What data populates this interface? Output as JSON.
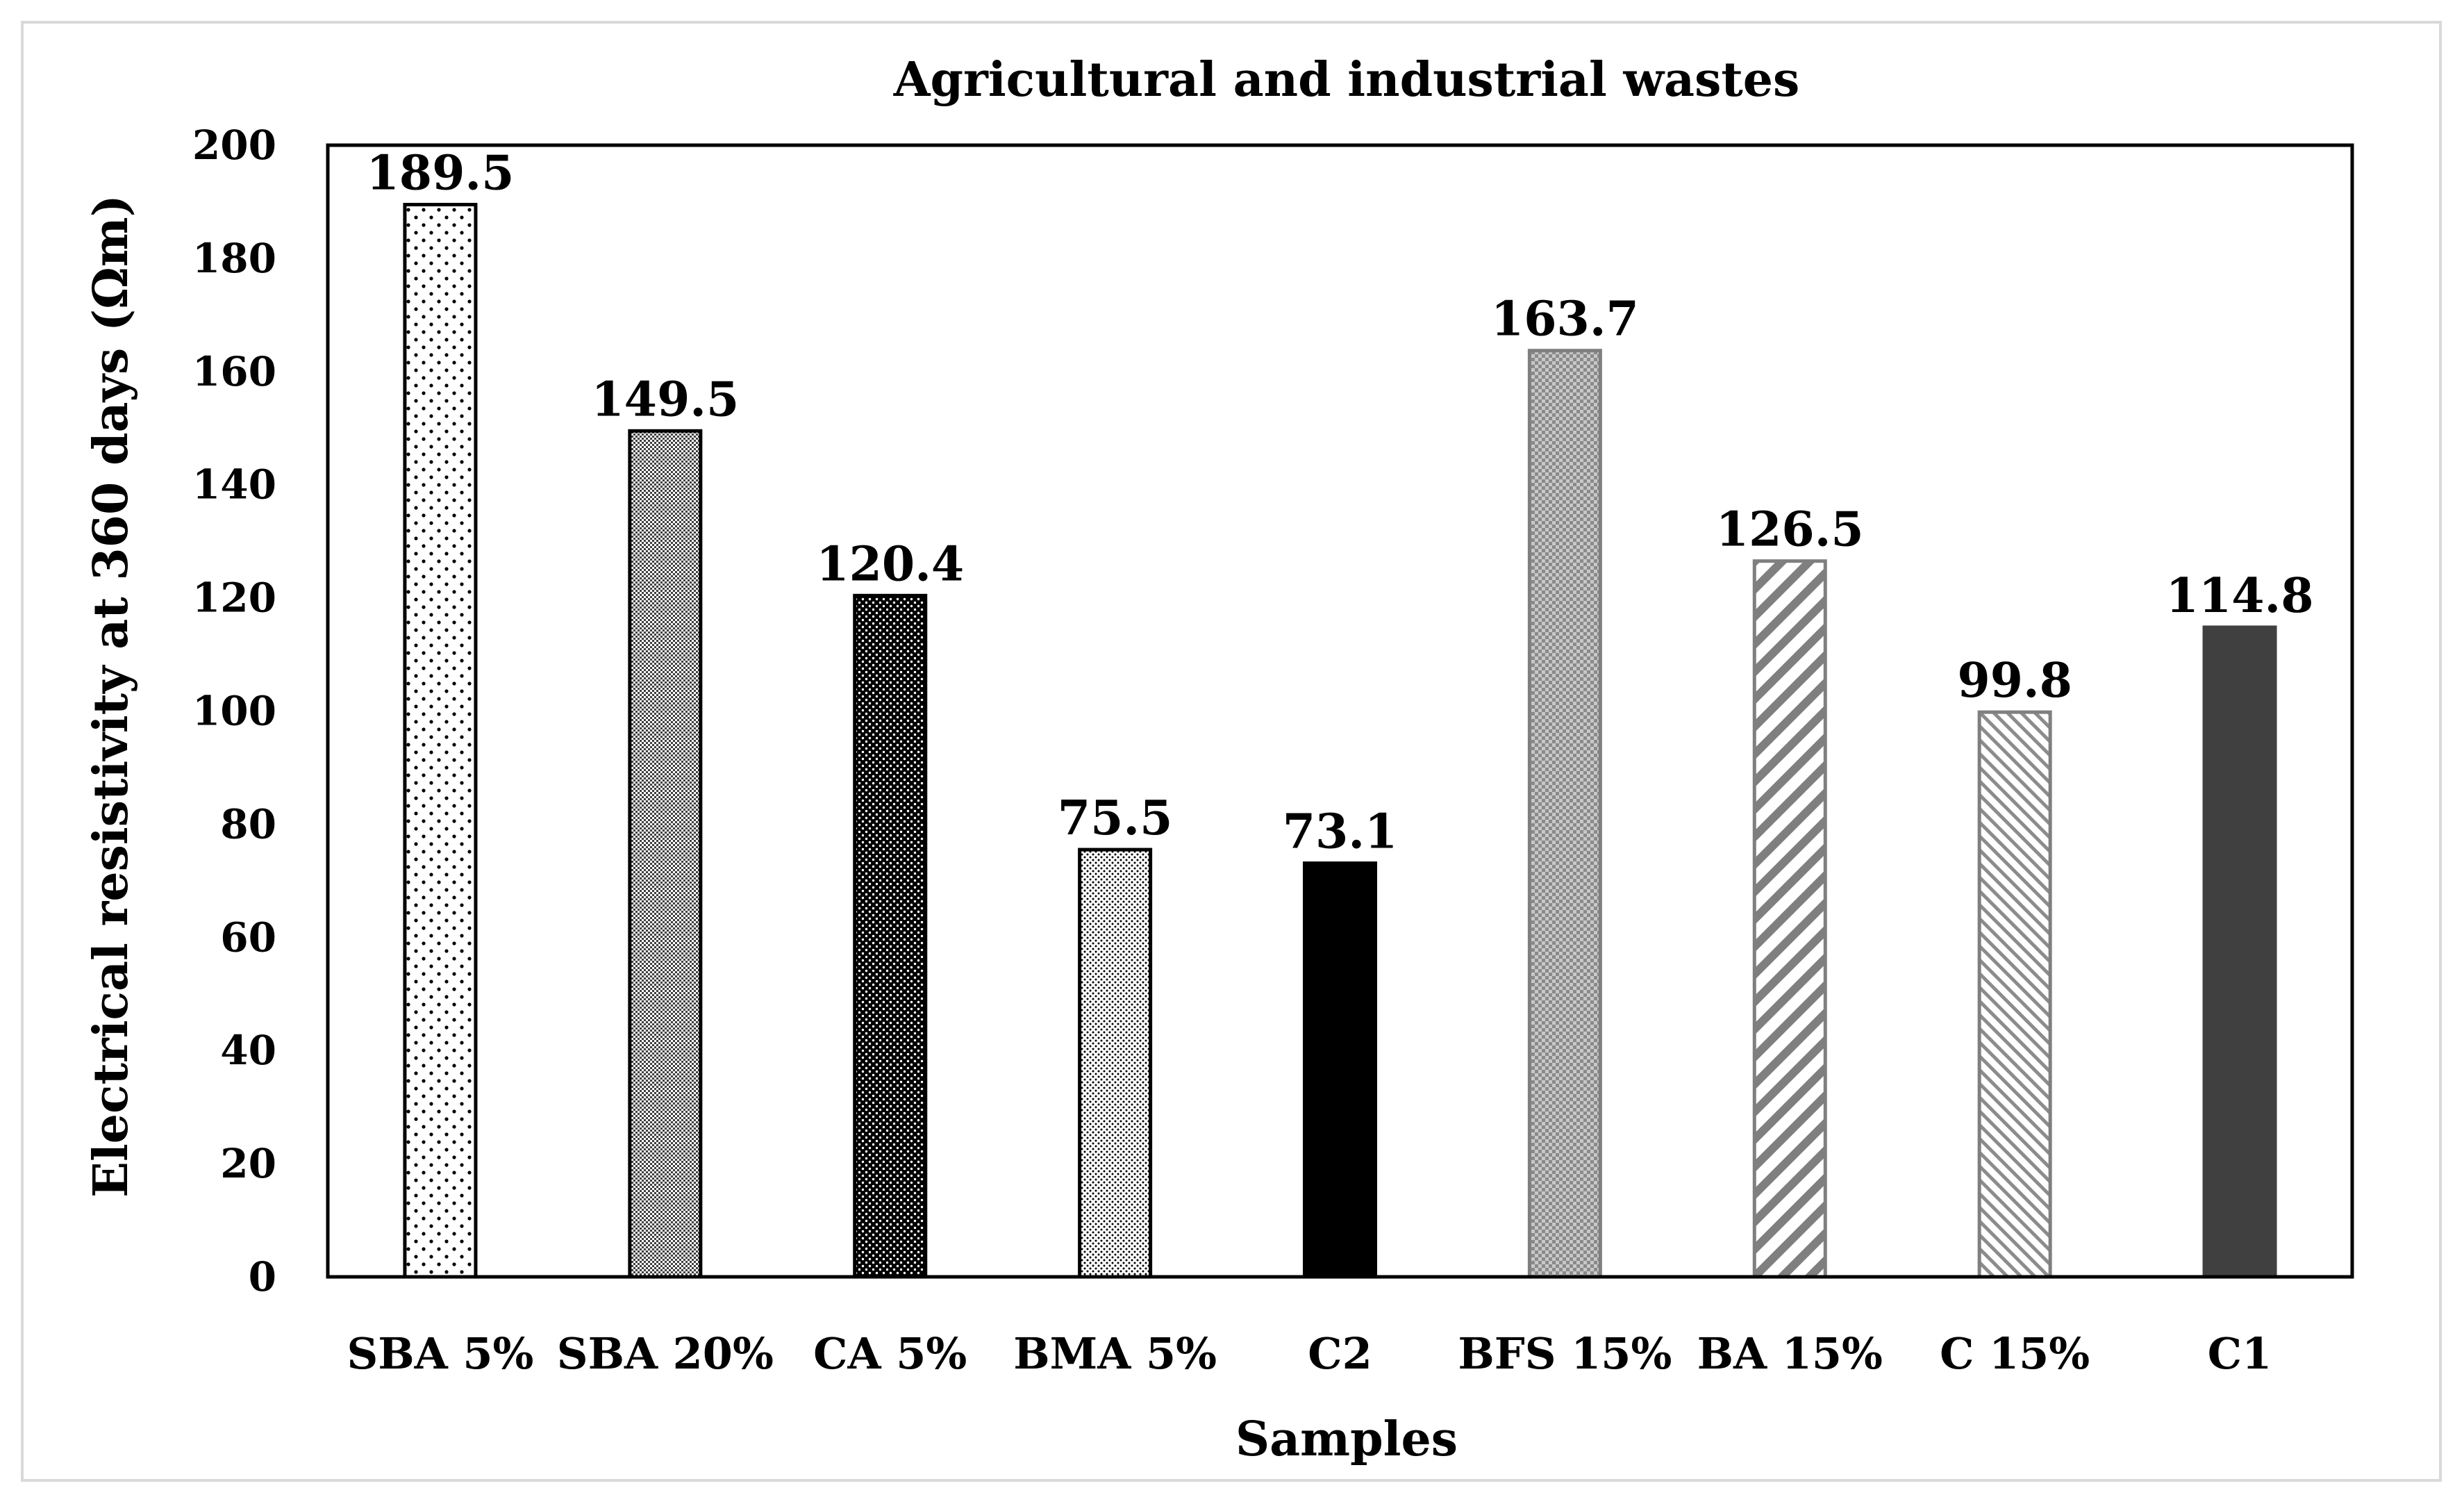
{
  "chart_data": {
    "type": "bar",
    "title": "Agricultural and industrial wastes",
    "xlabel": "Samples",
    "ylabel": "Electrical resistivity at 360 days (Ωm)",
    "ylim": [
      0,
      200
    ],
    "yticks": [
      0,
      20,
      40,
      60,
      80,
      100,
      120,
      140,
      160,
      180,
      200
    ],
    "ytick_labels": [
      "0",
      "20",
      "40",
      "60",
      "80",
      "100",
      "120",
      "140",
      "160",
      "180",
      "200"
    ],
    "grid": false,
    "categories": [
      "SBA 5%",
      "SBA 20%",
      "CA 5%",
      "BMA 5%",
      "C2",
      "BFS 15%",
      "BA 15%",
      "C 15%",
      "C1"
    ],
    "values": [
      189.5,
      149.5,
      120.4,
      75.5,
      73.1,
      163.7,
      126.5,
      99.8,
      114.8
    ],
    "data_labels": [
      "189.5",
      "149.5",
      "120.4",
      "75.5",
      "73.1",
      "163.7",
      "126.5",
      "99.8",
      "114.8"
    ],
    "patterns": [
      "sparse-dots",
      "fine-check",
      "dense-dots",
      "fine-dots",
      "solid-black",
      "grey-check",
      "wide-diagonal",
      "narrow-diagonal",
      "solid-dark"
    ],
    "colors": {
      "black": "#000000",
      "dark_grey": "#404040",
      "mid_grey": "#7f7f7f",
      "frame": "#d9d9d9"
    }
  }
}
